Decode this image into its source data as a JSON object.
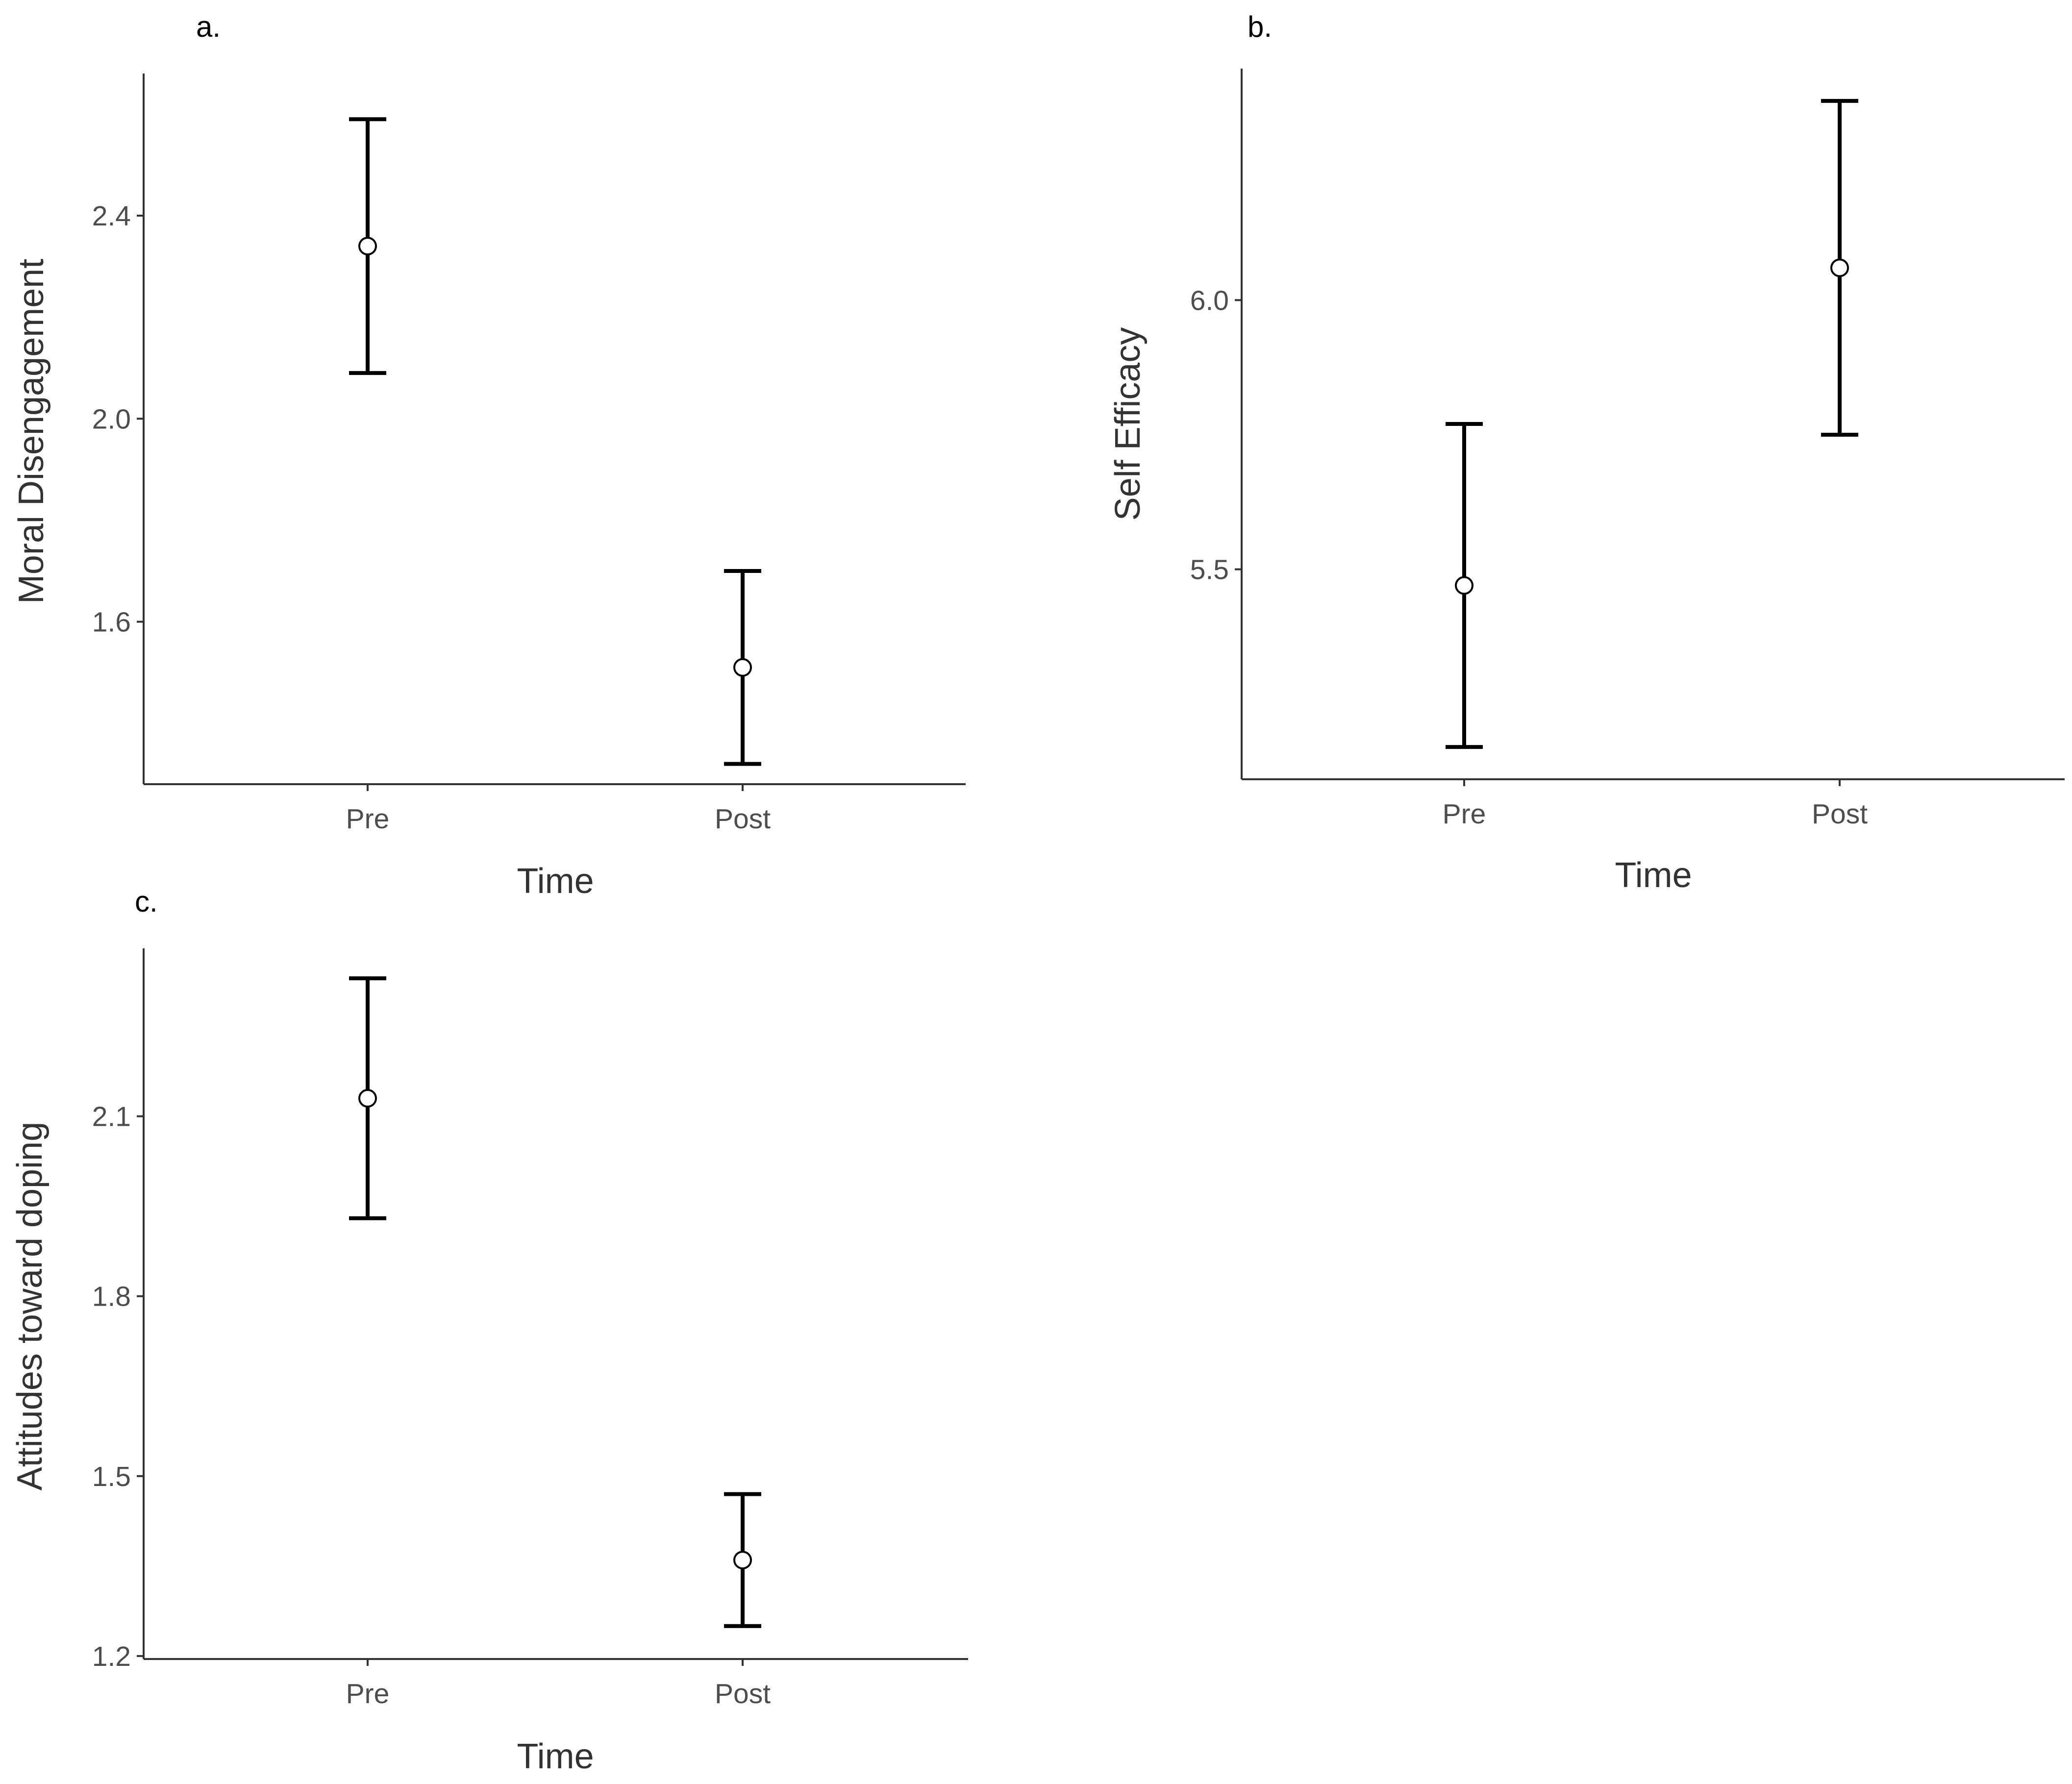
{
  "chart_data": [
    {
      "panel": "a.",
      "type": "scatter",
      "categories": [
        "Pre",
        "Post"
      ],
      "means": [
        2.34,
        1.51
      ],
      "lower": [
        2.09,
        1.32
      ],
      "upper": [
        2.59,
        1.7
      ],
      "xlabel": "Time",
      "ylabel": "Moral Disengagement",
      "yticks": [
        "1.6",
        "2.0",
        "2.4"
      ],
      "ylim": [
        1.28,
        2.68
      ],
      "grid": false
    },
    {
      "panel": "b.",
      "type": "scatter",
      "categories": [
        "Pre",
        "Post"
      ],
      "means": [
        5.47,
        6.06
      ],
      "lower": [
        5.17,
        5.75
      ],
      "upper": [
        5.77,
        6.37
      ],
      "xlabel": "Time",
      "ylabel": "Self Efficacy",
      "yticks": [
        "5.5",
        "6.0"
      ],
      "ylim": [
        5.11,
        6.43
      ],
      "grid": false
    },
    {
      "panel": "c.",
      "type": "scatter",
      "categories": [
        "Pre",
        "Post"
      ],
      "means": [
        2.13,
        1.36
      ],
      "lower": [
        1.93,
        1.25
      ],
      "upper": [
        2.33,
        1.47
      ],
      "xlabel": "Time",
      "ylabel": "Attitudes toward doping",
      "yticks": [
        "1.2",
        "1.5",
        "1.8",
        "2.1"
      ],
      "ylim": [
        1.195,
        2.38
      ],
      "grid": false
    }
  ]
}
